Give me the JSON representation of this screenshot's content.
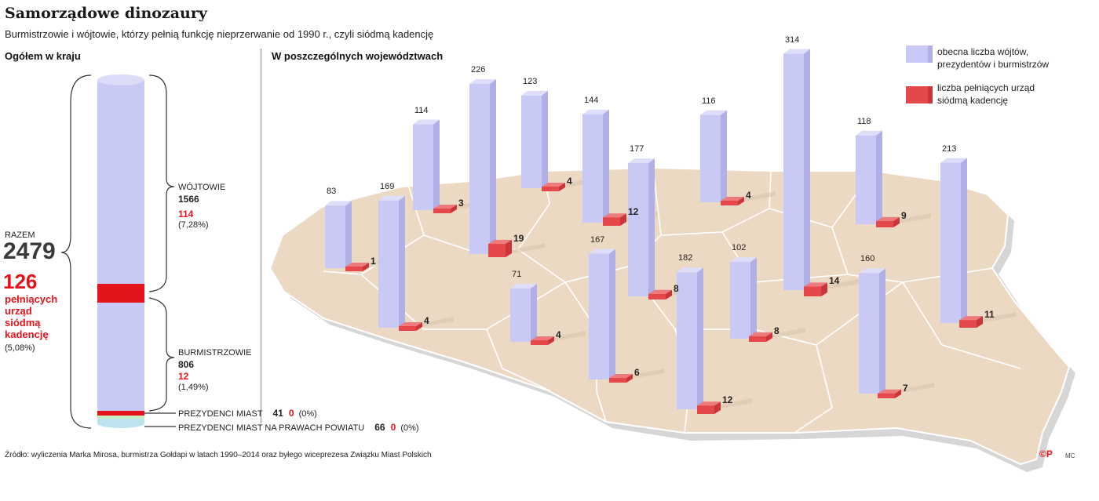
{
  "title": "Samorządowe dinozaury",
  "subtitle": "Burmistrzowie i wójtowie, którzy pełnią funkcję nieprzerwanie od 1990 r., czyli siódmą kadencję",
  "left_section_title": "Ogółem w kraju",
  "right_section_title": "W poszczególnych województwach",
  "total": {
    "razem_label": "RAZEM",
    "razem_value": "2479",
    "seventh_value": "126",
    "seventh_label": [
      "pełniących",
      "urząd",
      "siódmą",
      "kadencję"
    ],
    "seventh_pct": "(5,08%)"
  },
  "wojtowie": {
    "label": "WÓJTOWIE",
    "total": "1566",
    "seventh": "114",
    "pct": "(7,28%)"
  },
  "burmistrzowie": {
    "label": "BURMISTRZOWIE",
    "total": "806",
    "seventh": "12",
    "pct": "(1,49%)"
  },
  "prezydenci": {
    "label": "PREZYDENCI MIAST",
    "total": "41",
    "seventh": "0",
    "pct": "(0%)"
  },
  "prezydenci_powiat": {
    "label": "PREZYDENCI MIAST NA PRAWACH POWIATU",
    "total": "66",
    "seventh": "0",
    "pct": "(0%)"
  },
  "legend": {
    "total_label": [
      "obecna liczba wójtów,",
      "prezydentów i burmistrzów"
    ],
    "seventh_label": [
      "liczba pełniących urząd",
      "siódmą kadencję"
    ]
  },
  "colors": {
    "total": "#c9c9f5",
    "total_side": "#b0b0e6",
    "total_top": "#dedefa",
    "seventh": "#e5484b",
    "seventh_side": "#c8363a",
    "map": "#ecd9c4",
    "map_shadow": "#cfcfcf"
  },
  "chart_data": {
    "type": "bar",
    "title": "W poszczególnych województwach",
    "series": [
      {
        "name": "obecna liczba wójtów, prezydentów i burmistrzów",
        "values": [
          83,
          169,
          114,
          226,
          123,
          144,
          177,
          116,
          314,
          118,
          213,
          71,
          167,
          182,
          102,
          160
        ]
      },
      {
        "name": "liczba pełniących urząd siódmą kadencję",
        "values": [
          1,
          4,
          3,
          19,
          4,
          12,
          8,
          4,
          14,
          9,
          11,
          4,
          6,
          12,
          8,
          7
        ]
      }
    ],
    "national": {
      "razem": 2479,
      "seventh_term": 126,
      "wojtowie": 1566,
      "wojtowie_seventh": 114,
      "burmistrzowie": 806,
      "burmistrzowie_seventh": 12,
      "prezydenci": 41,
      "prezydenci_seventh": 0,
      "prezydenci_powiat": 66,
      "prezydenci_powiat_seventh": 0
    }
  },
  "source": "Źródło: wyliczenia Marka Mirosa, burmistrza Gołdapi w latach 1990–2014 oraz byłego wiceprezesa Związku Miast Polskich",
  "logo": "©P",
  "initials": "MC"
}
